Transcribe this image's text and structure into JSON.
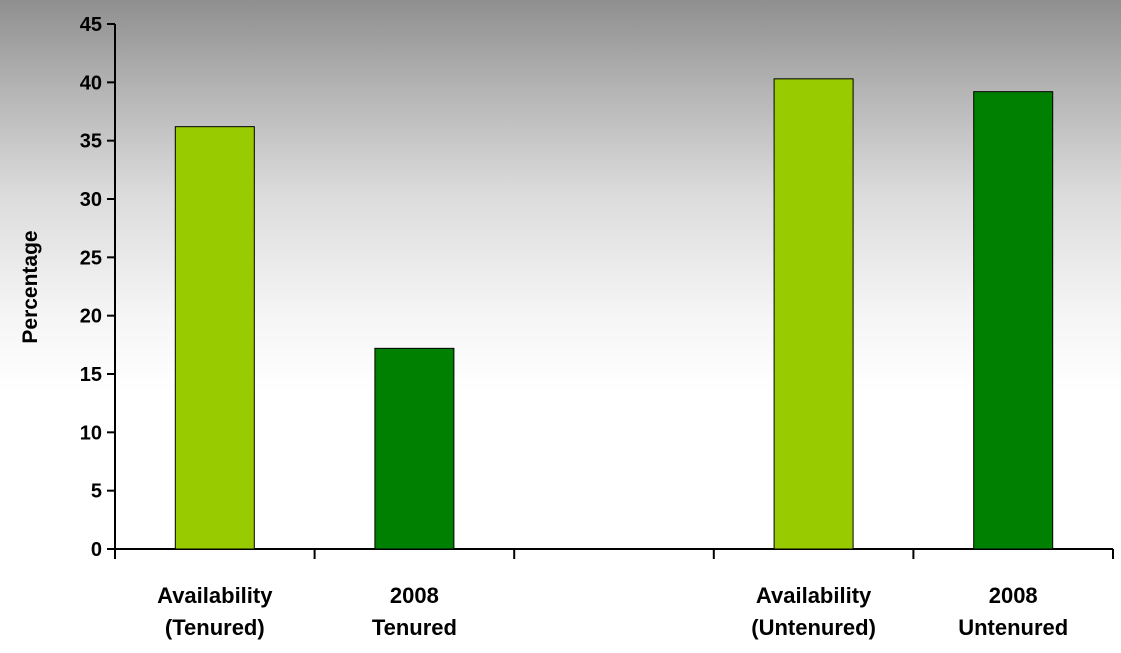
{
  "chart_data": {
    "type": "bar",
    "title": "",
    "xlabel": "",
    "ylabel": "Percentage",
    "ylim": [
      0,
      45
    ],
    "yticks": [
      0,
      5,
      10,
      15,
      20,
      25,
      30,
      35,
      40,
      45
    ],
    "grid": false,
    "legend": "none",
    "slots": 5,
    "categories": [
      {
        "slot": 0,
        "lines": [
          "Availability",
          "(Tenured)"
        ],
        "value": 36.2,
        "color": "#99cc00"
      },
      {
        "slot": 1,
        "lines": [
          "2008",
          "Tenured"
        ],
        "value": 17.2,
        "color": "#008000"
      },
      {
        "slot": 3,
        "lines": [
          "Availability",
          "(Untenured)"
        ],
        "value": 40.3,
        "color": "#99cc00"
      },
      {
        "slot": 4,
        "lines": [
          "2008",
          "Untenured"
        ],
        "value": 39.2,
        "color": "#008000"
      }
    ]
  }
}
